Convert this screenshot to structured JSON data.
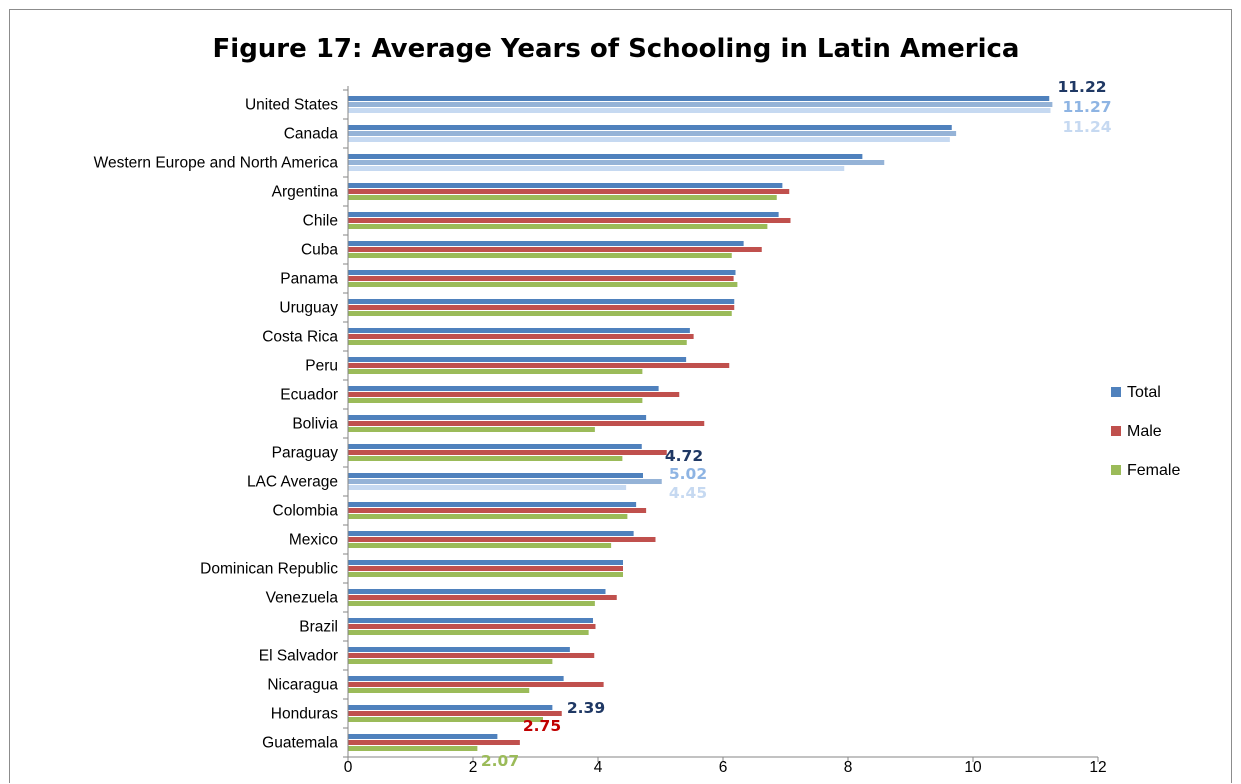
{
  "chart_data": {
    "type": "bar",
    "orientation": "horizontal",
    "title": "Figure 17: Average Years of Schooling in Latin America",
    "xlabel": "",
    "ylabel": "",
    "xlim": [
      0,
      12
    ],
    "x_ticks": [
      0,
      2,
      4,
      6,
      8,
      10,
      12
    ],
    "grid": false,
    "legend_position": "right",
    "categories": [
      "United States",
      "Canada",
      "Western Europe and North America",
      "Argentina",
      "Chile",
      "Cuba",
      "Panama",
      "Uruguay",
      "Costa Rica",
      "Peru",
      "Ecuador",
      "Bolivia",
      "Paraguay",
      "LAC Average",
      "Colombia",
      "Mexico",
      "Dominican Republic",
      "Venezuela",
      "Brazil",
      "El Salvador",
      "Nicaragua",
      "Honduras",
      "Guatemala"
    ],
    "series": [
      {
        "name": "Total",
        "color": "#4f81bd",
        "values": [
          11.22,
          9.66,
          8.23,
          6.95,
          6.89,
          6.33,
          6.2,
          6.18,
          5.47,
          5.41,
          4.97,
          4.77,
          4.7,
          4.72,
          4.61,
          4.57,
          4.4,
          4.12,
          3.92,
          3.55,
          3.45,
          3.27,
          2.39
        ]
      },
      {
        "name": "Male",
        "color": "#c0504d",
        "values": [
          11.27,
          9.73,
          8.58,
          7.06,
          7.08,
          6.62,
          6.17,
          6.18,
          5.53,
          6.1,
          5.3,
          5.7,
          5.1,
          5.02,
          4.77,
          4.92,
          4.4,
          4.3,
          3.96,
          3.94,
          4.09,
          3.42,
          2.75
        ]
      },
      {
        "name": "Female",
        "color": "#9bbb59",
        "values": [
          11.24,
          9.63,
          7.94,
          6.86,
          6.71,
          6.14,
          6.23,
          6.14,
          5.42,
          4.71,
          4.71,
          3.95,
          4.39,
          4.45,
          4.47,
          4.21,
          4.4,
          3.95,
          3.85,
          3.27,
          2.9,
          3.12,
          2.07
        ]
      }
    ],
    "special_colors": {
      "Total": "#4f81bd",
      "Male": "#95b3d7",
      "Female": "#c6d9f1"
    },
    "special_categories": [
      "United States",
      "Canada",
      "Western Europe and North America",
      "LAC Average"
    ],
    "annotations": [
      {
        "text": "11.22",
        "color": "#1f3864"
      },
      {
        "text": "11.27",
        "color": "#8eb4e3"
      },
      {
        "text": "11.24",
        "color": "#c6d9f1"
      },
      {
        "text": "4.72",
        "color": "#1f3864"
      },
      {
        "text": "5.02",
        "color": "#8eb4e3"
      },
      {
        "text": "4.45",
        "color": "#c6d9f1"
      },
      {
        "text": "2.39",
        "color": "#1f3864"
      },
      {
        "text": "2.75",
        "color": "#c00000"
      },
      {
        "text": "2.07",
        "color": "#9bbb59"
      }
    ]
  }
}
